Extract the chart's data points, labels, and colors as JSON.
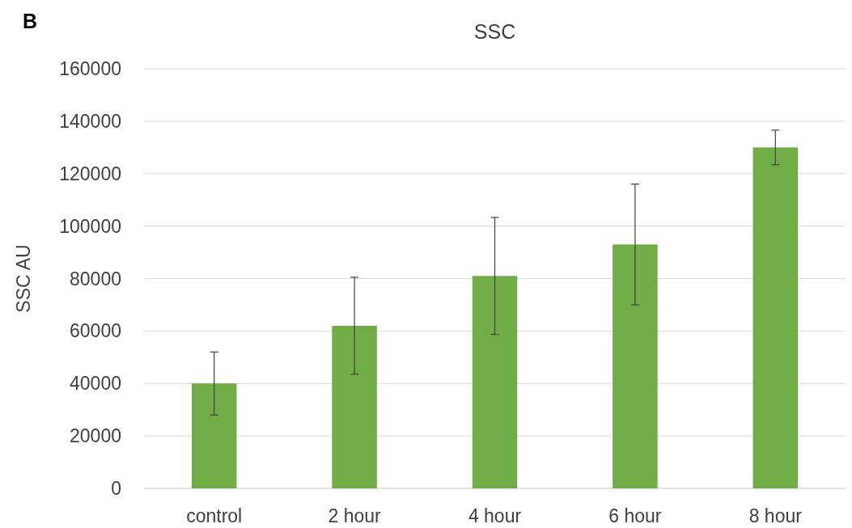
{
  "chart_data": {
    "type": "bar",
    "title": "SSC",
    "ylabel": "SSC AU",
    "annotations": [
      "B"
    ],
    "categories": [
      "control",
      "2 hour",
      "4 hour",
      "6 hour",
      "8 hour"
    ],
    "series": [
      {
        "color": "#70ad47",
        "values": [
          40000,
          62000,
          81000,
          93000,
          130000
        ],
        "errors": [
          12000,
          18500,
          22300,
          23000,
          6600
        ]
      }
    ],
    "ylim": [
      0,
      160000
    ],
    "yticks": [
      0,
      20000,
      40000,
      60000,
      80000,
      100000,
      120000,
      140000,
      160000
    ],
    "grid": "y"
  }
}
